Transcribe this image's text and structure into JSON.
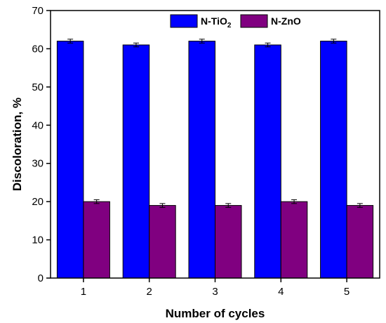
{
  "chart_data": {
    "type": "bar",
    "categories": [
      "1",
      "2",
      "3",
      "4",
      "5"
    ],
    "series": [
      {
        "name": "N-TiO",
        "name_sub": "2",
        "color": "#0000ff",
        "values": [
          62,
          61,
          62,
          61,
          62
        ],
        "errors": [
          0.5,
          0.5,
          0.5,
          0.5,
          0.5
        ]
      },
      {
        "name": "N-ZnO",
        "color": "#800080",
        "values": [
          20,
          19,
          19,
          20,
          19
        ],
        "errors": [
          0.5,
          0.5,
          0.5,
          0.5,
          0.5
        ]
      }
    ],
    "xlabel": "Number of cycles",
    "ylabel": "Discoloration, %",
    "ylim": [
      0,
      70
    ],
    "yticks": [
      0,
      10,
      20,
      30,
      40,
      50,
      60,
      70
    ],
    "grid": false,
    "legend": "top-right"
  }
}
